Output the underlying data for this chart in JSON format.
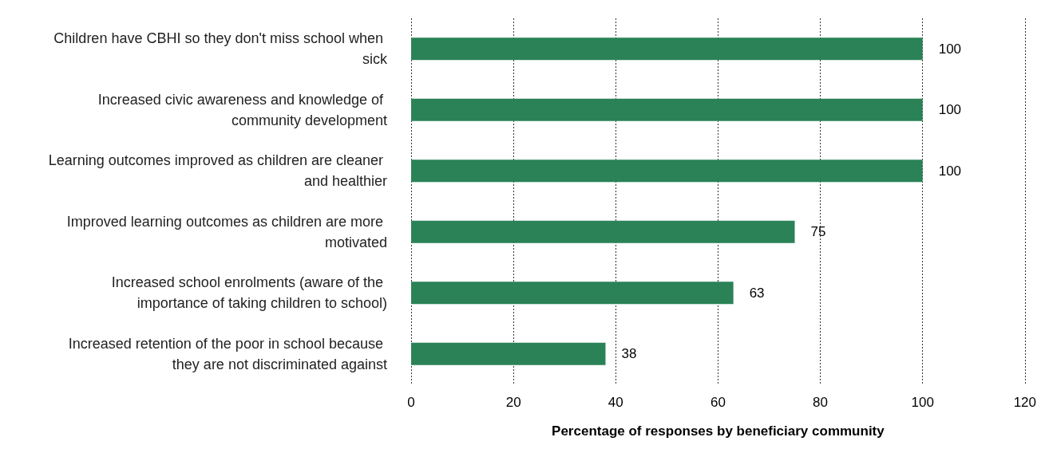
{
  "chart_data": {
    "type": "bar",
    "orientation": "horizontal",
    "xlabel": "Percentage of responses by beneficiary community",
    "categories": [
      "Children have CBHI so they don't miss school when sick",
      "Increased civic awareness and knowledge of community development",
      "Learning outcomes improved as children are cleaner and healthier",
      "Improved learning outcomes as children are more motivated",
      "Increased school enrolments (aware of the importance of taking children to school)",
      "Increased retention of the poor in school because they are not discriminated against"
    ],
    "values": [
      100,
      100,
      100,
      75,
      63,
      38
    ],
    "color": "#2a8256",
    "xlim": [
      0,
      120
    ],
    "xticks": [
      0,
      20,
      40,
      60,
      80,
      100,
      120
    ],
    "grid": "x",
    "data_labels": true
  }
}
